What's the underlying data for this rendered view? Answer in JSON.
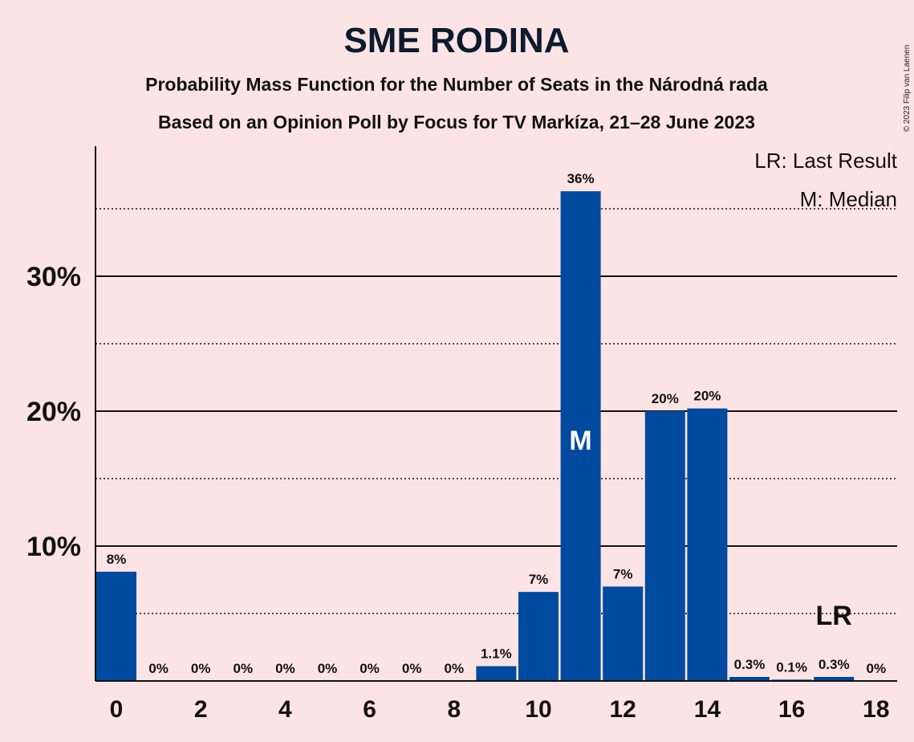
{
  "title": "SME RODINA",
  "subtitle1": "Probability Mass Function for the Number of Seats in the Národná rada",
  "subtitle2": "Based on an Opinion Poll by Focus for TV Markíza, 21–28 June 2023",
  "copyright": "© 2023 Filip van Laenen",
  "legend": {
    "lr": "LR: Last Result",
    "median": "M: Median"
  },
  "colors": {
    "background": "#fde4e4",
    "bar": "#004a9f",
    "median_marker": "#ffffff",
    "lr_marker": "#111111"
  },
  "chart_data": {
    "type": "bar",
    "x": [
      0,
      1,
      2,
      3,
      4,
      5,
      6,
      7,
      8,
      9,
      10,
      11,
      12,
      13,
      14,
      15,
      16,
      17,
      18
    ],
    "values": [
      8.1,
      0,
      0,
      0,
      0,
      0,
      0,
      0,
      0,
      1.1,
      6.6,
      36.3,
      7.0,
      20.0,
      20.2,
      0.3,
      0.1,
      0.3,
      0
    ],
    "data_labels": [
      "8%",
      "0%",
      "0%",
      "0%",
      "0%",
      "0%",
      "0%",
      "0%",
      "0%",
      "1.1%",
      "7%",
      "36%",
      "7%",
      "20%",
      "20%",
      "0.3%",
      "0.1%",
      "0.3%",
      "0%"
    ],
    "xtick_labels": [
      "0",
      "2",
      "4",
      "6",
      "8",
      "10",
      "12",
      "14",
      "16",
      "18"
    ],
    "xtick_values": [
      0,
      2,
      4,
      6,
      8,
      10,
      12,
      14,
      16,
      18
    ],
    "ytick_labels": [
      "10%",
      "20%",
      "30%"
    ],
    "ytick_values": [
      10,
      20,
      30
    ],
    "dotted_gridlines": [
      5,
      15,
      25,
      35
    ],
    "ylim": [
      0,
      39.5
    ],
    "median": {
      "seats": 11,
      "label": "M"
    },
    "last_result": {
      "seats": 17,
      "label": "LR"
    },
    "xlabel": "",
    "ylabel": "",
    "grid": true,
    "legend_position": "top-right"
  }
}
